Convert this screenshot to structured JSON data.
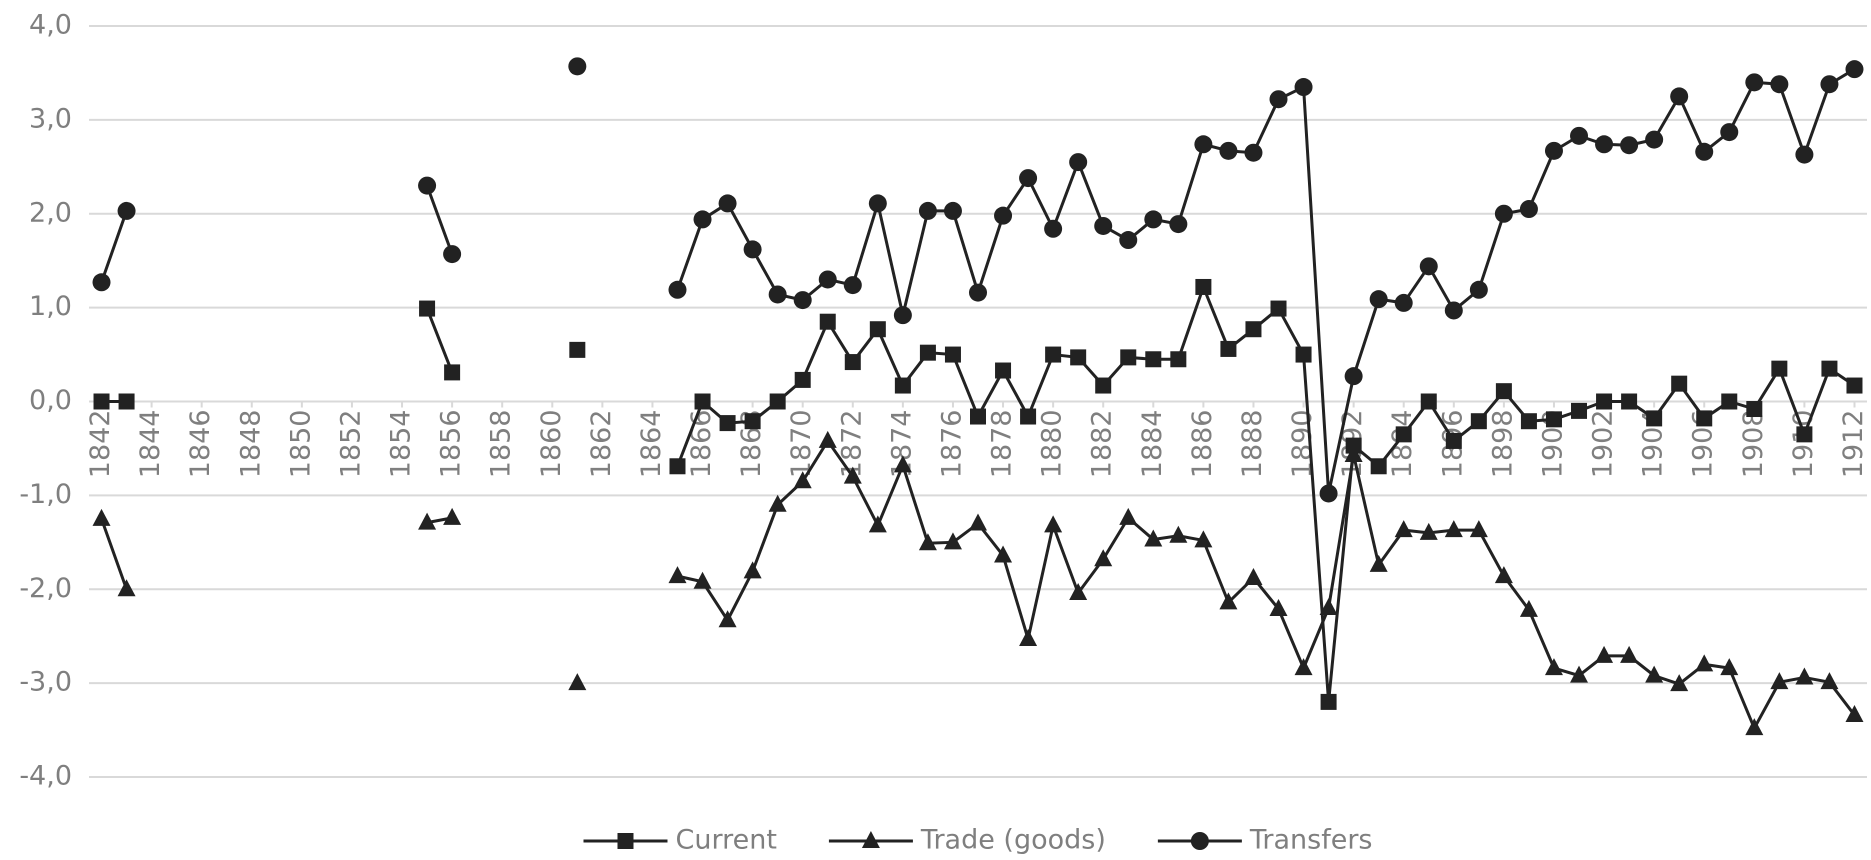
{
  "chart_data": {
    "type": "line",
    "x": [
      1842,
      1843,
      1844,
      1845,
      1846,
      1847,
      1848,
      1849,
      1850,
      1851,
      1852,
      1853,
      1854,
      1855,
      1856,
      1857,
      1858,
      1859,
      1860,
      1861,
      1862,
      1863,
      1864,
      1865,
      1866,
      1867,
      1868,
      1869,
      1870,
      1871,
      1872,
      1873,
      1874,
      1875,
      1876,
      1877,
      1878,
      1879,
      1880,
      1881,
      1882,
      1883,
      1884,
      1885,
      1886,
      1887,
      1888,
      1889,
      1890,
      1891,
      1892,
      1893,
      1894,
      1895,
      1896,
      1897,
      1898,
      1899,
      1900,
      1901,
      1902,
      1903,
      1904,
      1905,
      1906,
      1907,
      1908,
      1909,
      1910,
      1911,
      1912
    ],
    "series": [
      {
        "name": "Current",
        "color": "#222222",
        "marker": "square",
        "values": [
          0.0,
          0.0,
          null,
          null,
          null,
          null,
          null,
          null,
          null,
          null,
          null,
          null,
          null,
          0.99,
          0.31,
          null,
          null,
          null,
          null,
          0.55,
          null,
          null,
          null,
          -0.69,
          0.0,
          -0.23,
          -0.21,
          0.0,
          0.23,
          0.85,
          0.42,
          0.77,
          0.17,
          0.52,
          0.5,
          -0.16,
          0.33,
          -0.16,
          0.5,
          0.47,
          0.17,
          0.47,
          0.45,
          0.45,
          1.22,
          0.56,
          0.77,
          0.99,
          0.5,
          -3.2,
          -0.47,
          -0.69,
          -0.35,
          0.0,
          -0.42,
          -0.21,
          0.11,
          -0.21,
          -0.19,
          -0.1,
          0.0,
          0.0,
          -0.18,
          0.19,
          -0.18,
          0.0,
          -0.08,
          0.35,
          -0.35,
          0.35,
          0.17
        ]
      },
      {
        "name": "Trade (goods)",
        "color": "#222222",
        "marker": "triangle",
        "values": [
          -1.25,
          -2.0,
          null,
          null,
          null,
          null,
          null,
          null,
          null,
          null,
          null,
          null,
          null,
          -1.29,
          -1.24,
          null,
          null,
          null,
          null,
          -3.0,
          null,
          null,
          null,
          -1.86,
          -1.92,
          -2.33,
          -1.81,
          -1.1,
          -0.85,
          -0.42,
          -0.8,
          -1.32,
          -0.68,
          -1.51,
          -1.5,
          -1.3,
          -1.64,
          -2.53,
          -1.32,
          -2.04,
          -1.68,
          -1.24,
          -1.47,
          -1.43,
          -1.48,
          -2.14,
          -1.88,
          -2.21,
          -2.84,
          -2.2,
          -0.57,
          -1.74,
          -1.37,
          -1.4,
          -1.37,
          -1.37,
          -1.86,
          -2.22,
          -2.84,
          -2.92,
          -2.71,
          -2.71,
          -2.92,
          -3.01,
          -2.8,
          -2.84,
          -3.48,
          -2.99,
          -2.94,
          -2.99,
          -3.34
        ]
      },
      {
        "name": "Transfers",
        "color": "#222222",
        "marker": "circle",
        "values": [
          1.27,
          2.03,
          null,
          null,
          null,
          null,
          null,
          null,
          null,
          null,
          null,
          null,
          null,
          2.3,
          1.57,
          null,
          null,
          null,
          null,
          3.57,
          null,
          null,
          null,
          1.19,
          1.94,
          2.11,
          1.62,
          1.14,
          1.08,
          1.3,
          1.24,
          2.11,
          0.92,
          2.03,
          2.03,
          1.16,
          1.98,
          2.38,
          1.84,
          2.55,
          1.87,
          1.72,
          1.94,
          1.89,
          2.74,
          2.67,
          2.65,
          3.22,
          3.35,
          -0.98,
          0.27,
          1.09,
          1.05,
          1.44,
          0.97,
          1.19,
          2.0,
          2.05,
          2.67,
          2.83,
          2.74,
          2.73,
          2.79,
          3.25,
          2.66,
          2.87,
          3.4,
          3.38,
          2.63,
          3.38,
          3.54
        ]
      }
    ],
    "xlim": [
      1841.5,
      1912.5
    ],
    "xticks": [
      1842,
      1844,
      1846,
      1848,
      1850,
      1852,
      1854,
      1856,
      1858,
      1860,
      1862,
      1864,
      1866,
      1868,
      1870,
      1872,
      1874,
      1876,
      1878,
      1880,
      1882,
      1884,
      1886,
      1888,
      1890,
      1892,
      1894,
      1896,
      1898,
      1900,
      1902,
      1904,
      1906,
      1908,
      1910,
      1912
    ],
    "ylim": [
      -4,
      4
    ],
    "yticks": [
      {
        "value": -4,
        "label": "-4,0"
      },
      {
        "value": -3,
        "label": "-3,0"
      },
      {
        "value": -2,
        "label": "-2,0"
      },
      {
        "value": -1,
        "label": "-1,0"
      },
      {
        "value": 0,
        "label": "0,0"
      },
      {
        "value": 1,
        "label": "1,0"
      },
      {
        "value": 2,
        "label": "2,0"
      },
      {
        "value": 3,
        "label": "3,0"
      },
      {
        "value": 4,
        "label": "4,0"
      }
    ],
    "grid": true,
    "legend": "bottom"
  }
}
